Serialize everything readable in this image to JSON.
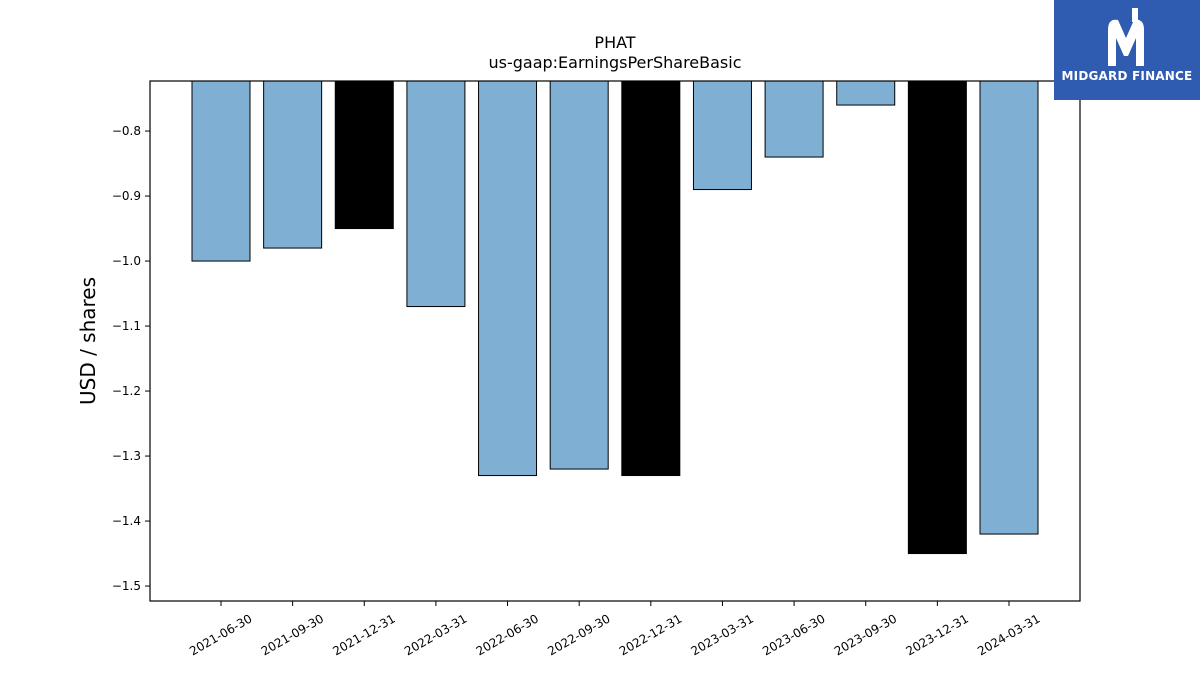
{
  "logo": {
    "text": "MIDGARD FINANCE",
    "color": "#2f5bb0"
  },
  "chart_data": {
    "type": "bar",
    "title": "PHAT",
    "subtitle": "us-gaap:EarningsPerShareBasic",
    "xlabel": "",
    "ylabel": "USD / shares",
    "ylim": [
      -1.523,
      -0.723
    ],
    "yticks": [
      -0.8,
      -0.9,
      -1.0,
      -1.1,
      -1.2,
      -1.3,
      -1.4,
      -1.5
    ],
    "grid": false,
    "categories": [
      "2021-06-30",
      "2021-09-30",
      "2021-12-31",
      "2022-03-31",
      "2022-06-30",
      "2022-09-30",
      "2022-12-31",
      "2023-03-31",
      "2023-06-30",
      "2023-09-30",
      "2023-12-31",
      "2024-03-31"
    ],
    "values": [
      -1.0,
      -0.98,
      -0.95,
      -1.07,
      -1.33,
      -1.32,
      -1.33,
      -0.89,
      -0.84,
      -0.76,
      -1.45,
      -1.42
    ],
    "colors": [
      "#7fb0d4",
      "#7fb0d4",
      "#000000",
      "#7fb0d4",
      "#7fb0d4",
      "#7fb0d4",
      "#000000",
      "#7fb0d4",
      "#7fb0d4",
      "#7fb0d4",
      "#000000",
      "#7fb0d4"
    ]
  }
}
